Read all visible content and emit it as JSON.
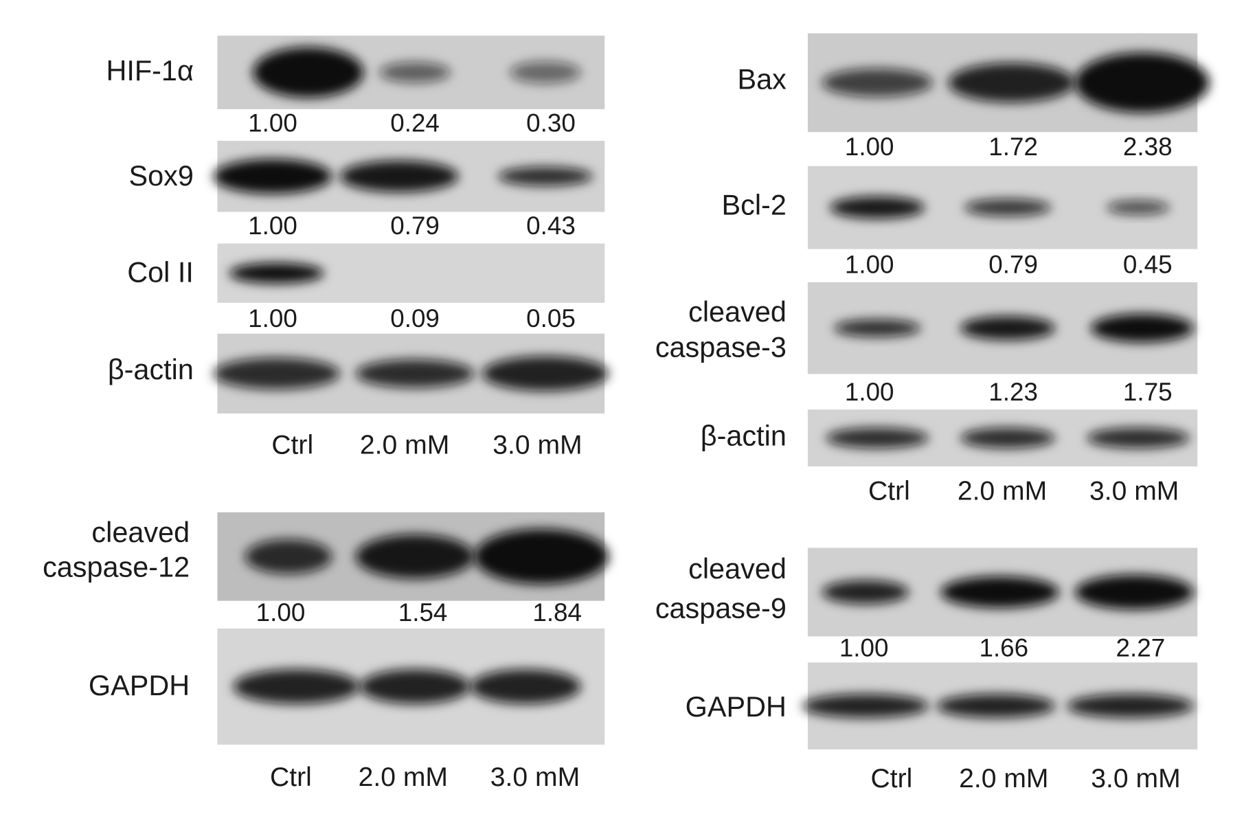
{
  "panels": [
    {
      "blots": [
        {
          "label": [
            "HIF-1α"
          ],
          "values": [
            "1.00",
            "0.24",
            "0.30"
          ]
        },
        {
          "label": [
            "Sox9"
          ],
          "values": [
            "1.00",
            "0.79",
            "0.43"
          ]
        },
        {
          "label": [
            "Col II"
          ],
          "values": [
            "1.00",
            "0.09",
            "0.05"
          ]
        },
        {
          "label": [
            "β-actin"
          ]
        }
      ],
      "lanes": [
        "Ctrl",
        "2.0 mM",
        "3.0 mM"
      ]
    },
    {
      "blots": [
        {
          "label": [
            "cleaved",
            "caspase-12"
          ],
          "values": [
            "1.00",
            "1.54",
            "1.84"
          ]
        },
        {
          "label": [
            "GAPDH"
          ]
        }
      ],
      "lanes": [
        "Ctrl",
        "2.0 mM",
        "3.0 mM"
      ]
    },
    {
      "blots": [
        {
          "label": [
            "Bax"
          ],
          "values": [
            "1.00",
            "1.72",
            "2.38"
          ]
        },
        {
          "label": [
            "Bcl-2"
          ],
          "values": [
            "1.00",
            "0.79",
            "0.45"
          ]
        },
        {
          "label": [
            "cleaved",
            "caspase-3"
          ],
          "values": [
            "1.00",
            "1.23",
            "1.75"
          ]
        },
        {
          "label": [
            "β-actin"
          ]
        }
      ],
      "lanes": [
        "Ctrl",
        "2.0 mM",
        "3.0 mM"
      ]
    },
    {
      "blots": [
        {
          "label": [
            "cleaved",
            "caspase-9"
          ],
          "values": [
            "1.00",
            "1.66",
            "2.27"
          ]
        },
        {
          "label": [
            "GAPDH"
          ]
        }
      ],
      "lanes": [
        "Ctrl",
        "2.0 mM",
        "3.0 mM"
      ]
    }
  ]
}
